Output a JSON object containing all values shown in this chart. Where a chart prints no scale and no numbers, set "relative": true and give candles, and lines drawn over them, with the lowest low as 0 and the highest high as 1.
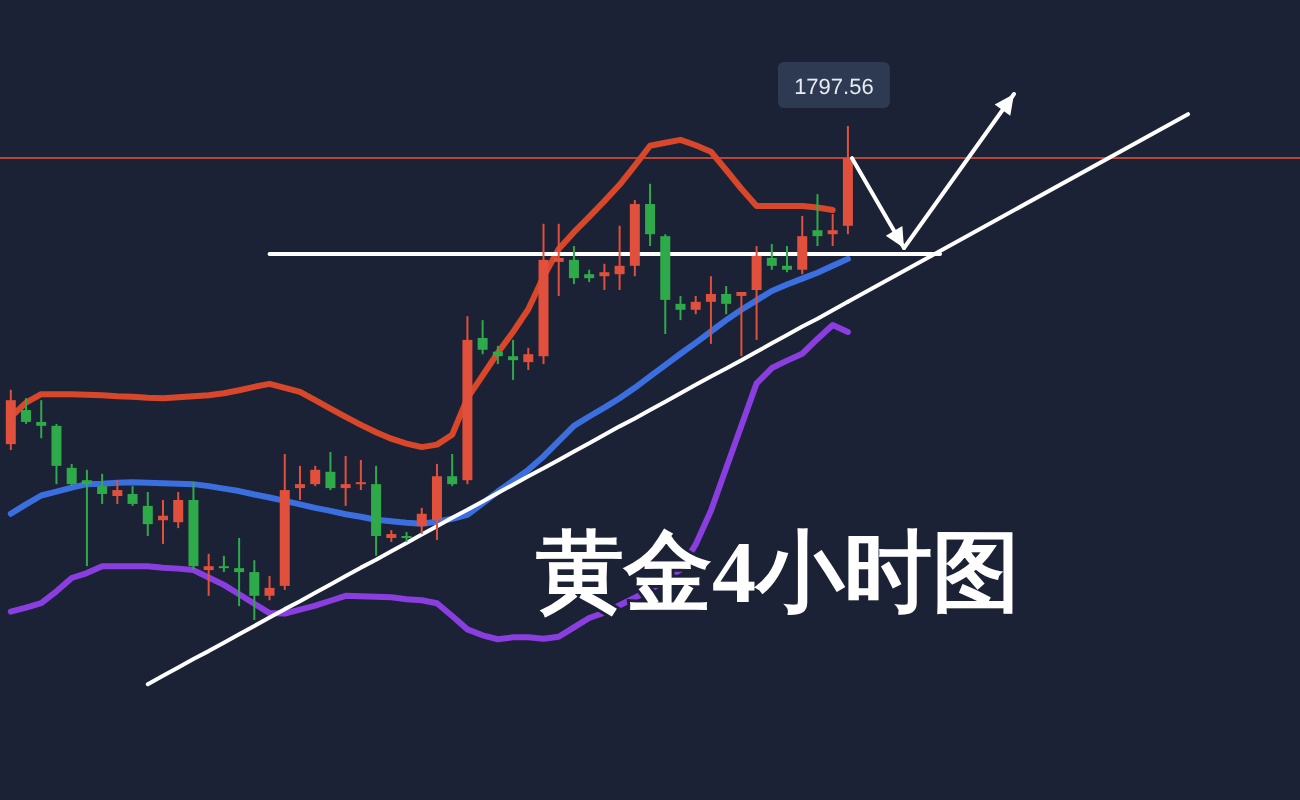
{
  "chart_data": {
    "type": "candlestick",
    "title": "黄金4小时图",
    "relative": true,
    "categories": [
      null,
      null,
      null,
      null,
      null,
      null,
      null,
      null,
      null,
      null,
      null,
      null,
      null,
      null,
      null,
      null,
      null,
      null,
      null,
      null,
      null,
      null,
      null,
      null,
      null,
      null,
      null,
      null,
      null,
      null,
      null,
      null,
      null,
      null,
      null,
      null,
      null,
      null,
      null,
      null,
      null,
      null,
      null,
      null,
      null,
      null,
      null,
      null,
      null,
      null,
      null,
      null,
      null,
      null,
      null,
      null
    ],
    "ohlc": [
      [
        0.356,
        0.466,
        0.344,
        0.445
      ],
      [
        0.425,
        0.449,
        0.397,
        0.401
      ],
      [
        0.401,
        0.445,
        0.368,
        0.393
      ],
      [
        0.393,
        0.397,
        0.275,
        0.312
      ],
      [
        0.308,
        0.316,
        0.271,
        0.275
      ],
      [
        0.283,
        0.304,
        0.109,
        0.275
      ],
      [
        0.271,
        0.296,
        0.235,
        0.255
      ],
      [
        0.251,
        0.283,
        0.235,
        0.263
      ],
      [
        0.255,
        0.271,
        0.231,
        0.235
      ],
      [
        0.231,
        0.259,
        0.17,
        0.194
      ],
      [
        0.202,
        0.243,
        0.154,
        0.211
      ],
      [
        0.198,
        0.259,
        0.186,
        0.243
      ],
      [
        0.243,
        0.279,
        0.101,
        0.109
      ],
      [
        0.101,
        0.134,
        0.049,
        0.109
      ],
      [
        0.109,
        0.13,
        0.097,
        0.105
      ],
      [
        0.105,
        0.166,
        0.028,
        0.097
      ],
      [
        0.097,
        0.121,
        0,
        0.049
      ],
      [
        0.049,
        0.089,
        0.04,
        0.065
      ],
      [
        0.069,
        0.336,
        0.061,
        0.263
      ],
      [
        0.267,
        0.312,
        0.243,
        0.275
      ],
      [
        0.275,
        0.312,
        0.271,
        0.304
      ],
      [
        0.3,
        0.34,
        0.263,
        0.267
      ],
      [
        0.267,
        0.332,
        0.231,
        0.275
      ],
      [
        0.275,
        0.324,
        0.263,
        0.279
      ],
      [
        0.275,
        0.312,
        0.13,
        0.17
      ],
      [
        0.166,
        0.182,
        0.158,
        0.174
      ],
      [
        0.17,
        0.178,
        0.158,
        0.166
      ],
      [
        0.19,
        0.227,
        0.174,
        0.215
      ],
      [
        0.202,
        0.316,
        0.162,
        0.291
      ],
      [
        0.291,
        0.336,
        0.271,
        0.275
      ],
      [
        0.283,
        0.615,
        0.275,
        0.567
      ],
      [
        0.571,
        0.607,
        0.538,
        0.547
      ],
      [
        0.543,
        0.555,
        0.518,
        0.534
      ],
      [
        0.534,
        0.567,
        0.486,
        0.526
      ],
      [
        0.522,
        0.551,
        0.506,
        0.538
      ],
      [
        0.534,
        0.802,
        0.518,
        0.729
      ],
      [
        0.725,
        0.802,
        0.656,
        0.733
      ],
      [
        0.729,
        0.757,
        0.68,
        0.692
      ],
      [
        0.7,
        0.709,
        0.684,
        0.692
      ],
      [
        0.696,
        0.721,
        0.668,
        0.704
      ],
      [
        0.7,
        0.798,
        0.668,
        0.717
      ],
      [
        0.717,
        0.85,
        0.696,
        0.842
      ],
      [
        0.842,
        0.883,
        0.757,
        0.781
      ],
      [
        0.777,
        0.781,
        0.579,
        0.648
      ],
      [
        0.64,
        0.656,
        0.607,
        0.628
      ],
      [
        0.628,
        0.656,
        0.619,
        0.644
      ],
      [
        0.644,
        0.696,
        0.559,
        0.66
      ],
      [
        0.66,
        0.676,
        0.619,
        0.64
      ],
      [
        0.656,
        0.664,
        0.534,
        0.664
      ],
      [
        0.668,
        0.757,
        0.567,
        0.737
      ],
      [
        0.733,
        0.761,
        0.709,
        0.717
      ],
      [
        0.717,
        0.757,
        0.704,
        0.709
      ],
      [
        0.709,
        0.818,
        0.7,
        0.777
      ],
      [
        0.789,
        0.862,
        0.757,
        0.777
      ],
      [
        0.781,
        0.822,
        0.757,
        0.789
      ],
      [
        0.798,
        1,
        0.781,
        0.935
      ]
    ],
    "colors": [
      "#e0503c",
      "#2eaa4a",
      "#2eaa4a",
      "#2eaa4a",
      "#2eaa4a",
      "#2eaa4a",
      "#2eaa4a",
      "#e0503c",
      "#2eaa4a",
      "#2eaa4a",
      "#e0503c",
      "#e0503c",
      "#2eaa4a",
      "#e0503c",
      "#2eaa4a",
      "#2eaa4a",
      "#2eaa4a",
      "#e0503c",
      "#e0503c",
      "#e0503c",
      "#e0503c",
      "#2eaa4a",
      "#e0503c",
      "#e0503c",
      "#2eaa4a",
      "#e0503c",
      "#2eaa4a",
      "#e0503c",
      "#e0503c",
      "#2eaa4a",
      "#e0503c",
      "#2eaa4a",
      "#2eaa4a",
      "#2eaa4a",
      "#e0503c",
      "#e0503c",
      "#e0503c",
      "#2eaa4a",
      "#2eaa4a",
      "#e0503c",
      "#e0503c",
      "#e0503c",
      "#2eaa4a",
      "#2eaa4a",
      "#2eaa4a",
      "#e0503c",
      "#e0503c",
      "#2eaa4a",
      "#e0503c",
      "#e0503c",
      "#2eaa4a",
      "#2eaa4a",
      "#e0503c",
      "#2eaa4a",
      "#e0503c",
      "#e0503c"
    ],
    "series": [
      {
        "type": "line",
        "color": "#d9472b",
        "values": [
          0.411,
          0.44,
          0.457,
          0.457,
          0.457,
          0.456,
          0.455,
          0.453,
          0.452,
          0.45,
          0.449,
          0.451,
          0.453,
          0.455,
          0.459,
          0.465,
          0.472,
          0.478,
          0.47,
          0.462,
          0.445,
          0.428,
          0.411,
          0.395,
          0.38,
          0.367,
          0.357,
          0.35,
          0.355,
          0.375,
          0.449,
          0.495,
          0.541,
          0.583,
          0.629,
          0.695,
          0.751,
          0.785,
          0.816,
          0.848,
          0.881,
          0.92,
          0.96,
          0.966,
          0.972,
          0.961,
          0.948,
          0.911,
          0.873,
          0.838,
          0.838,
          0.838,
          0.838,
          0.835,
          0.83,
          null
        ]
      },
      {
        "type": "line",
        "color": "#3b6fe0",
        "values": [
          0.215,
          0.234,
          0.252,
          0.26,
          0.268,
          0.275,
          0.276,
          0.278,
          0.279,
          0.278,
          0.277,
          0.276,
          0.275,
          0.271,
          0.266,
          0.261,
          0.254,
          0.248,
          0.241,
          0.234,
          0.227,
          0.221,
          0.214,
          0.209,
          0.203,
          0.2,
          0.197,
          0.195,
          0.199,
          0.205,
          0.213,
          0.236,
          0.26,
          0.282,
          0.304,
          0.331,
          0.362,
          0.393,
          0.412,
          0.43,
          0.449,
          0.47,
          0.493,
          0.516,
          0.539,
          0.561,
          0.584,
          0.607,
          0.628,
          0.647,
          0.666,
          0.679,
          0.691,
          0.703,
          0.717,
          0.731
        ]
      },
      {
        "type": "line",
        "color": "#8a3ee0",
        "values": [
          0.017,
          0.025,
          0.034,
          0.058,
          0.085,
          0.095,
          0.109,
          0.109,
          0.109,
          0.109,
          0.106,
          0.104,
          0.101,
          0.086,
          0.071,
          0.052,
          0.033,
          0.014,
          0.013,
          0.021,
          0.029,
          0.039,
          0.049,
          0.048,
          0.047,
          0.046,
          0.042,
          0.04,
          0.034,
          0.008,
          -0.019,
          -0.031,
          -0.039,
          -0.035,
          -0.035,
          -0.038,
          -0.034,
          -0.015,
          0.004,
          0.015,
          0.03,
          0.045,
          0.061,
          0.081,
          0.102,
          0.153,
          0.221,
          0.307,
          0.393,
          0.479,
          0.51,
          0.525,
          0.539,
          0.569,
          0.597,
          0.583
        ]
      },
      {
        "type": "line",
        "color": "#ffffff",
        "values": [
          null,
          null,
          null,
          null,
          null,
          null,
          null,
          null,
          null,
          -0.13,
          -0.113,
          -0.096,
          -0.079,
          -0.063,
          -0.046,
          -0.029,
          -0.012,
          0.005,
          0.022,
          0.038,
          0.055,
          0.072,
          0.089,
          0.106,
          0.122,
          0.139,
          0.156,
          0.173,
          0.19,
          0.207,
          0.223,
          0.24,
          0.257,
          0.274,
          0.291,
          0.307,
          0.324,
          0.341,
          0.358,
          0.375,
          0.392,
          0.408,
          0.425,
          0.442,
          0.459,
          0.476,
          0.493,
          0.509,
          0.526,
          0.543,
          0.56,
          0.577,
          0.594,
          0.61,
          0.627,
          0.644
        ]
      },
      {
        "type": "line",
        "color": "#ffffff",
        "values": [
          null,
          null,
          null,
          null,
          null,
          null,
          null,
          null,
          null,
          null,
          null,
          null,
          null,
          null,
          null,
          null,
          null,
          0.741,
          0.741,
          0.741,
          0.741,
          0.741,
          0.741,
          0.741,
          0.741,
          0.741,
          0.741,
          0.741,
          0.741,
          0.741,
          0.741,
          0.741,
          0.741,
          0.741,
          0.741,
          0.741,
          0.741,
          0.741,
          0.741,
          0.741,
          0.741,
          0.741,
          0.741,
          0.741,
          0.741,
          0.741,
          0.741,
          0.741,
          0.741,
          0.741,
          0.741,
          0.741,
          0.741,
          0.741,
          0.741,
          0.741
        ]
      }
    ],
    "ref_lines": [
      {
        "axis": "y",
        "value": 0.935,
        "color": "#b8453a"
      }
    ],
    "annotations": [
      "1797.56"
    ]
  }
}
